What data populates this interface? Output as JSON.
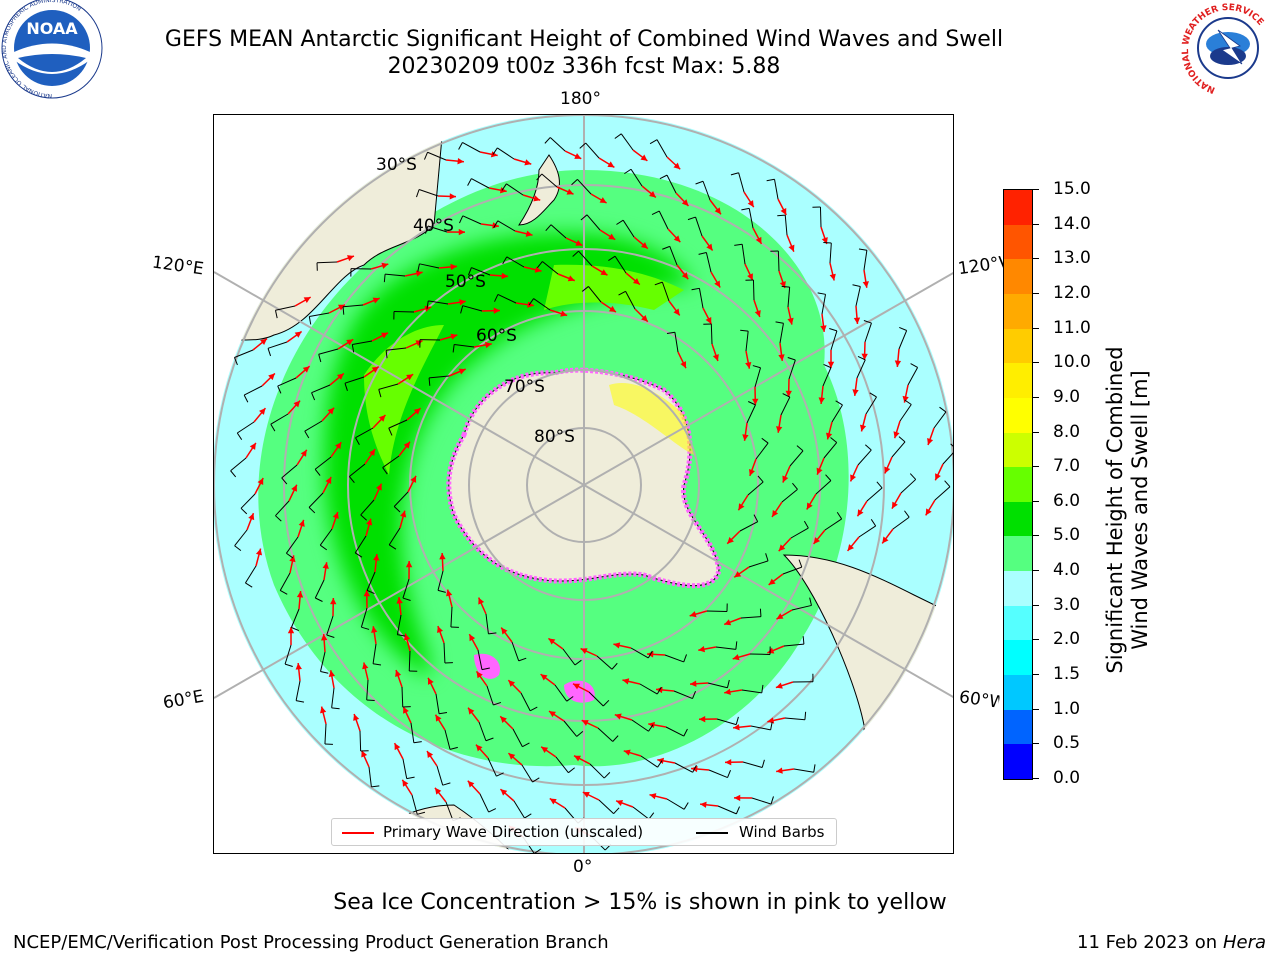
{
  "title_line1": "GEFS MEAN Antarctic Significant Height of Combined Wind Waves and Swell",
  "title_line2": "20230209 t00z 336h fcst   Max: 5.88",
  "meridian_labels": {
    "top": "180°",
    "bottom": "0°",
    "left_upper": "120°E",
    "left_lower": "60°E",
    "right_upper": "120°W",
    "right_lower": "60°W"
  },
  "latitude_labels": [
    "30°S",
    "40°S",
    "50°S",
    "60°S",
    "70°S",
    "80°S"
  ],
  "colorbar": {
    "label_line1": "Significant Height of Combined",
    "label_line2": "Wind Waves and Swell [m]",
    "ticks": [
      "0.0",
      "0.5",
      "1.0",
      "1.5",
      "2.0",
      "3.0",
      "4.0",
      "5.0",
      "6.0",
      "7.0",
      "8.0",
      "9.0",
      "10.0",
      "11.0",
      "12.0",
      "13.0",
      "14.0",
      "15.0"
    ],
    "colors": [
      "#0000ff",
      "#0064ff",
      "#00c8ff",
      "#00ffff",
      "#55ffff",
      "#aaffff",
      "#55ff80",
      "#00e000",
      "#66ff00",
      "#ccff00",
      "#ffff00",
      "#ffee00",
      "#ffcc00",
      "#ffaa00",
      "#ff8800",
      "#ff5500",
      "#ff2200"
    ]
  },
  "legend": {
    "wave_direction": "Primary Wave Direction (unscaled)",
    "wind_barbs": "Wind Barbs",
    "wave_color": "#ff0000",
    "barb_color": "#000000"
  },
  "note": "Sea Ice Concentration > 15% is shown in pink to yellow",
  "footer_left": "NCEP/EMC/Verification Post Processing Product Generation Branch",
  "footer_date": "11 Feb 2023 on",
  "footer_machine": "Hera",
  "logos": {
    "noaa_text": "NOAA",
    "noaa_ring_top": "NATIONAL OCEANIC AND ATMOSPHERIC ADMINISTRATION",
    "noaa_ring_bottom": "U.S. DEPARTMENT OF COMMERCE",
    "nws_ring_text": "NATIONAL WEATHER SERVICE"
  },
  "map_colors": {
    "land": "#efedda",
    "ice": "#ff66ff",
    "grid": "#b0b0b0"
  }
}
